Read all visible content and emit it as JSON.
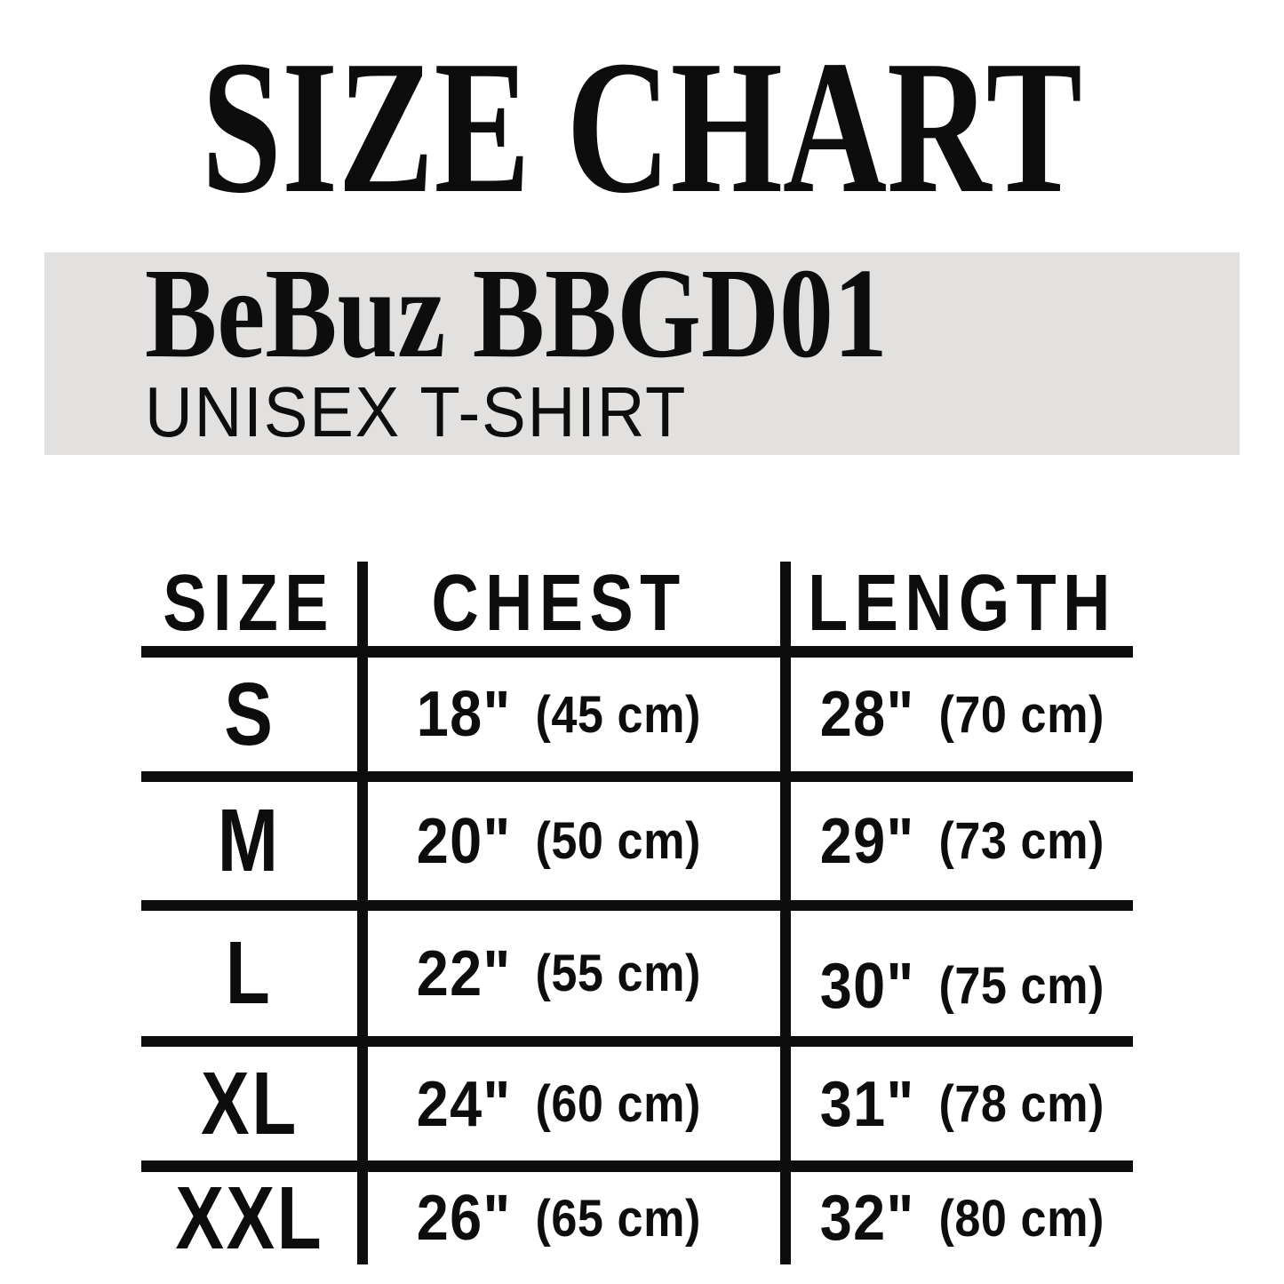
{
  "title": "SIZE CHART",
  "banner": {
    "product": "BeBuz BBGD01",
    "subtitle": "UNISEX T-SHIRT"
  },
  "table": {
    "headers": {
      "size": "SIZE",
      "chest": "CHEST",
      "length": "LENGTH"
    },
    "rows": [
      {
        "size": "S",
        "chest_in": "18\"",
        "chest_cm": "(45 cm)",
        "length_in": "28\"",
        "length_cm": "(70 cm)"
      },
      {
        "size": "M",
        "chest_in": "20\"",
        "chest_cm": "(50 cm)",
        "length_in": "29\"",
        "length_cm": "(73 cm)"
      },
      {
        "size": "L",
        "chest_in": "22\"",
        "chest_cm": "(55 cm)",
        "length_in": "30\"",
        "length_cm": "(75 cm)"
      },
      {
        "size": "XL",
        "chest_in": "24\"",
        "chest_cm": "(60 cm)",
        "length_in": "31\"",
        "length_cm": "(78 cm)"
      },
      {
        "size": "XXL",
        "chest_in": "26\"",
        "chest_cm": "(65 cm)",
        "length_in": "32\"",
        "length_cm": "(80 cm)"
      }
    ]
  },
  "colors": {
    "background": "#ffffff",
    "banner_bg": "#e2e1df",
    "text": "#0d0d0d"
  }
}
